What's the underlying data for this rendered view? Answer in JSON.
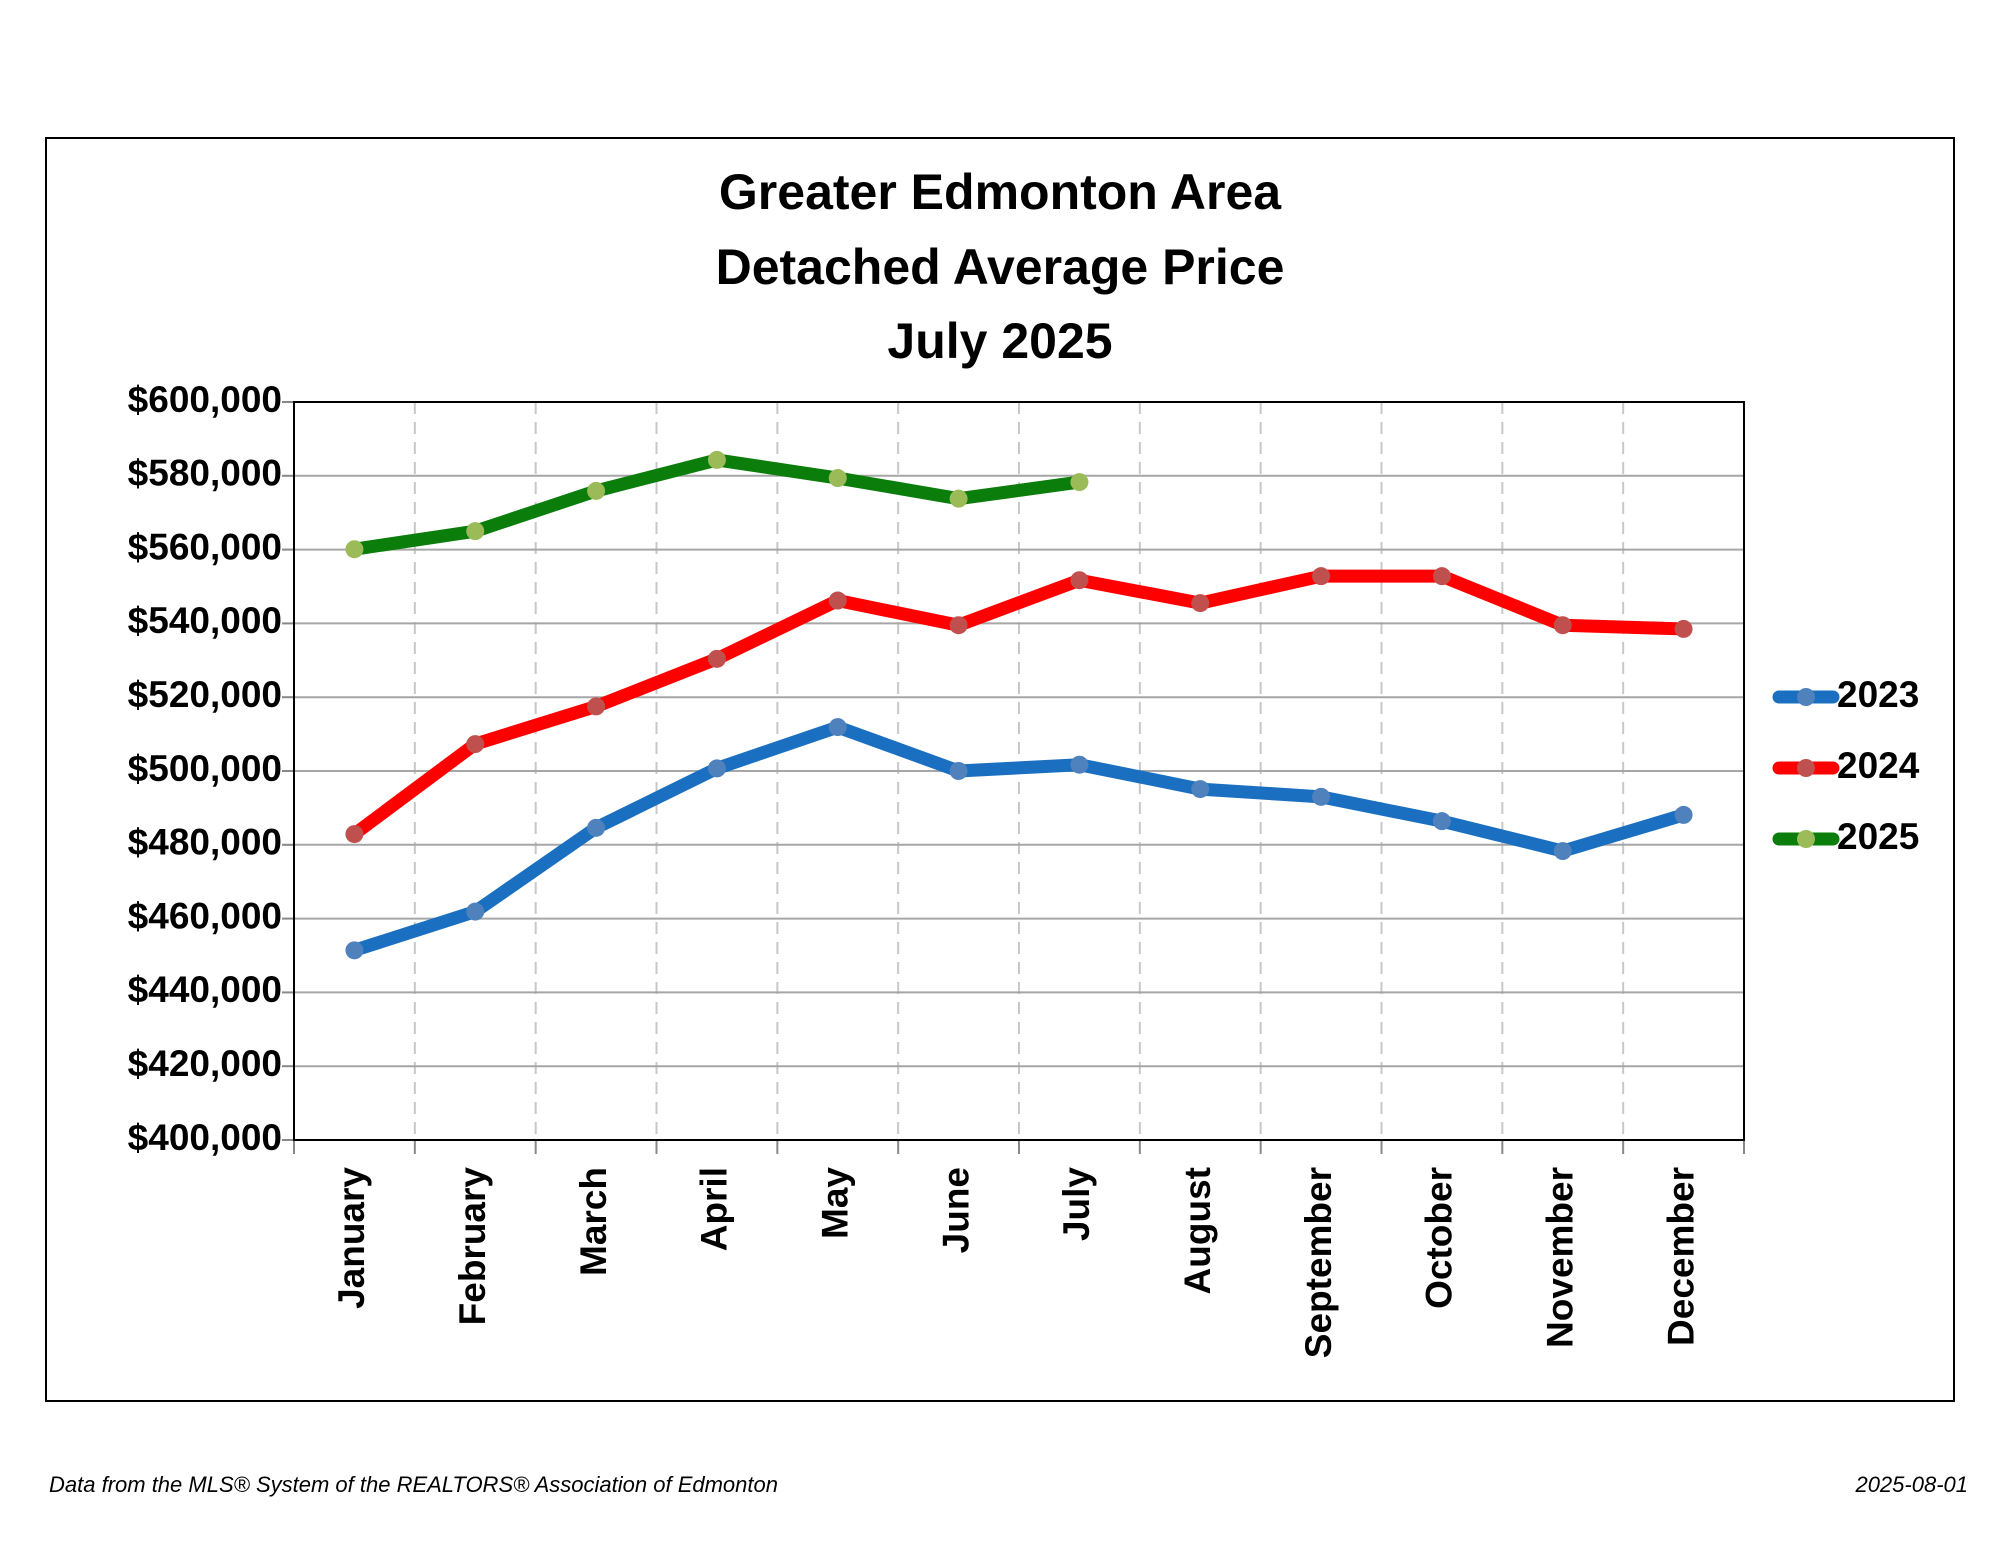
{
  "chart_data": {
    "type": "line",
    "title": [
      "Greater Edmonton Area",
      "Detached Average Price",
      "July 2025"
    ],
    "categories": [
      "January",
      "February",
      "March",
      "April",
      "May",
      "June",
      "July",
      "August",
      "September",
      "October",
      "November",
      "December"
    ],
    "series": [
      {
        "name": "2023",
        "color": "#1a6fc0",
        "marker_color": "#4f81bd",
        "values": [
          451400,
          461900,
          484600,
          500700,
          511900,
          500000,
          501700,
          495100,
          493000,
          486400,
          478300,
          488100
        ]
      },
      {
        "name": "2024",
        "color": "#ff0000",
        "marker_color": "#c0504d",
        "values": [
          482900,
          507300,
          517500,
          530400,
          546200,
          539500,
          551700,
          545500,
          552800,
          552800,
          539500,
          538500
        ]
      },
      {
        "name": "2025",
        "color": "#0a7d0a",
        "marker_color": "#9bbb59",
        "values": [
          560100,
          565000,
          575900,
          584300,
          579400,
          573800,
          578300,
          null,
          null,
          null,
          null,
          null
        ]
      }
    ],
    "ylim": [
      400000,
      600000
    ],
    "yticks": [
      {
        "value": 400000,
        "label": "$400,000"
      },
      {
        "value": 420000,
        "label": "$420,000"
      },
      {
        "value": 440000,
        "label": "$440,000"
      },
      {
        "value": 460000,
        "label": "$460,000"
      },
      {
        "value": 480000,
        "label": "$480,000"
      },
      {
        "value": 500000,
        "label": "$500,000"
      },
      {
        "value": 520000,
        "label": "$520,000"
      },
      {
        "value": 540000,
        "label": "$540,000"
      },
      {
        "value": 560000,
        "label": "$560,000"
      },
      {
        "value": 580000,
        "label": "$580,000"
      },
      {
        "value": 600000,
        "label": "$600,000"
      }
    ],
    "grid": true,
    "legend": "right",
    "source": "Data from the MLS® System of the REALTORS® Association of Edmonton",
    "date": "2025-08-01"
  }
}
